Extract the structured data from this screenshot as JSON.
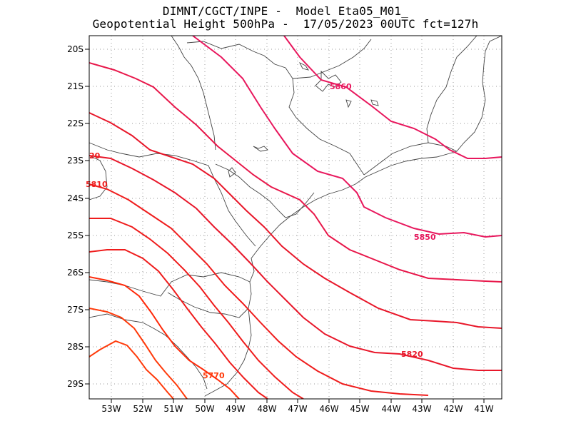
{
  "title": {
    "line1": "DIMNT/CGCT/INPE -  Model Eta05_M01_",
    "line2": "Geopotential Height 500hPa -  17/05/2023 00UTC fct=127h"
  },
  "axes": {
    "lat_labels": [
      "20S",
      "21S",
      "22S",
      "23S",
      "24S",
      "25S",
      "26S",
      "27S",
      "28S",
      "29S"
    ],
    "lon_labels": [
      "53W",
      "52W",
      "51W",
      "50W",
      "49W",
      "48W",
      "47W",
      "46W",
      "45W",
      "44W",
      "43W",
      "42W",
      "41W"
    ]
  },
  "contour_labels": [
    {
      "text": "5860",
      "color": "#e8175d"
    },
    {
      "text": "5850",
      "color": "#e8175d"
    },
    {
      "text": "5820",
      "color": "#e8172a"
    },
    {
      "text": "5810",
      "color": "#ef1c1c"
    },
    {
      "text": "5770",
      "color": "#ff3a0a"
    },
    {
      "text": "20",
      "color": "#ef1c1c"
    }
  ],
  "colors": {
    "c1": "#e8175d",
    "c2": "#e8174a",
    "c3": "#e8172a",
    "c4": "#ef1c1c",
    "c5": "#ff3a0a"
  }
}
